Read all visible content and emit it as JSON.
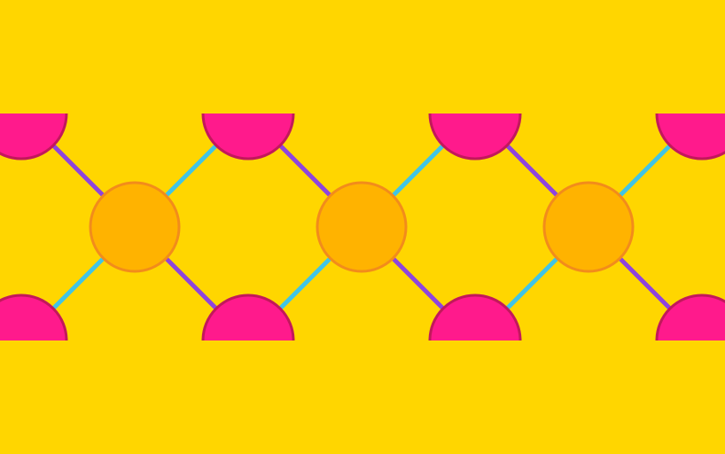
{
  "colors": {
    "background": "#FFD600",
    "orange_fill": "#FFB300",
    "orange_stroke": "#F28C1B",
    "pink_fill": "#FF1A8C",
    "pink_stroke": "#C2185B",
    "purple_link": "#8E44DD",
    "cyan_link": "#40C4E6"
  },
  "pattern": {
    "type": "repeating lattice",
    "orange_nodes": 3,
    "pink_half_circles_top": 4,
    "pink_half_circles_bottom": 4
  }
}
